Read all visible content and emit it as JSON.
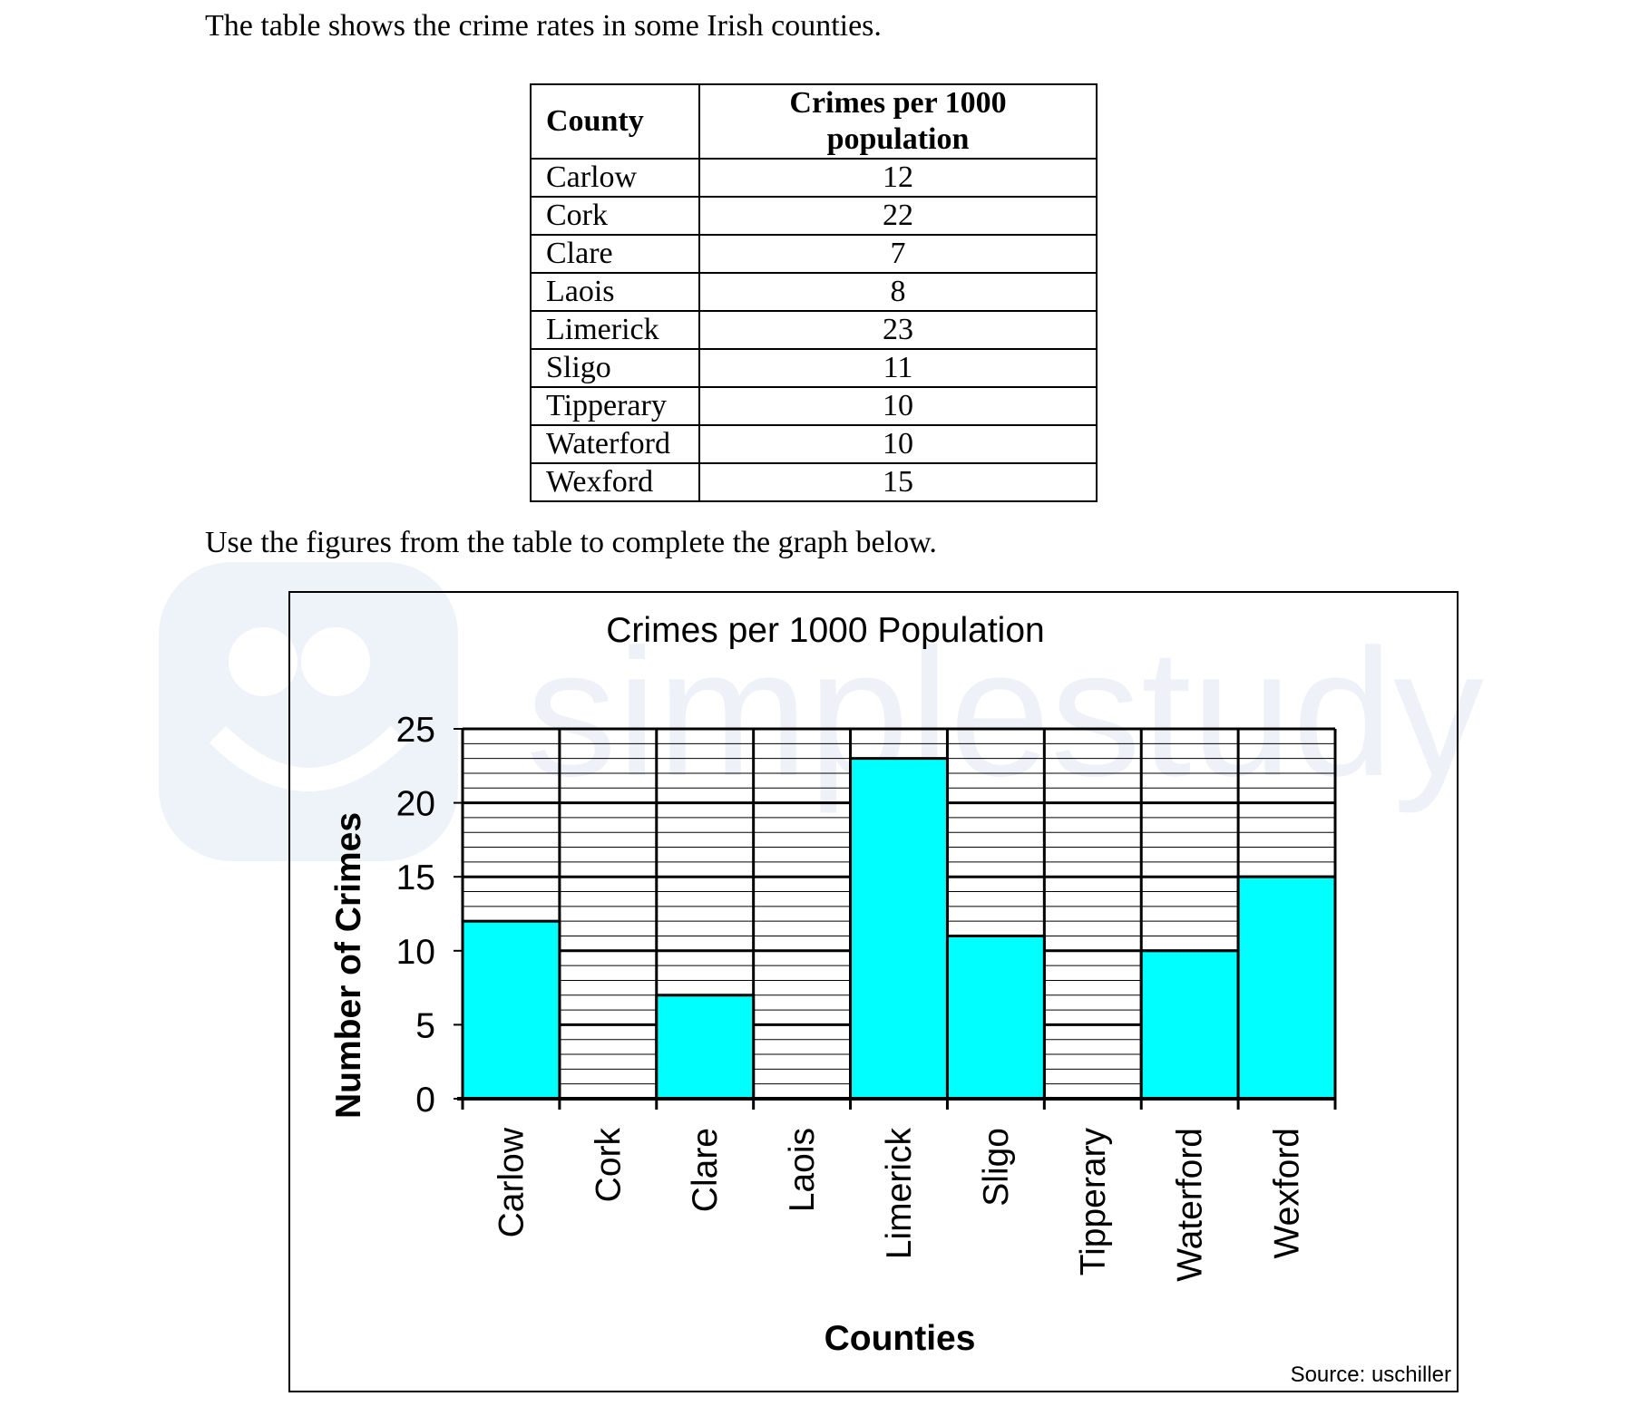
{
  "intro_text": "The table shows the crime rates in some Irish counties.",
  "table": {
    "headers": [
      "County",
      "Crimes per 1000 population"
    ],
    "rows": [
      {
        "county": "Carlow",
        "value": "12"
      },
      {
        "county": "Cork",
        "value": "22"
      },
      {
        "county": "Clare",
        "value": "7"
      },
      {
        "county": "Laois",
        "value": "8"
      },
      {
        "county": "Limerick",
        "value": "23"
      },
      {
        "county": "Sligo",
        "value": "11"
      },
      {
        "county": "Tipperary",
        "value": "10"
      },
      {
        "county": "Waterford",
        "value": "10"
      },
      {
        "county": "Wexford",
        "value": "15"
      }
    ]
  },
  "instruction_text": "Use the figures from the table to complete the graph below.",
  "watermark_text": "simplestudy",
  "source_text": "Source: uschiller",
  "chart_data": {
    "type": "bar",
    "title": "Crimes per 1000 Population",
    "xlabel": "Counties",
    "ylabel": "Number of Crimes",
    "categories": [
      "Carlow",
      "Cork",
      "Clare",
      "Laois",
      "Limerick",
      "Sligo",
      "Tipperary",
      "Waterford",
      "Wexford"
    ],
    "values": [
      12,
      null,
      7,
      null,
      23,
      11,
      null,
      10,
      15
    ],
    "ylim": [
      0,
      25
    ],
    "yticks": [
      0,
      5,
      10,
      15,
      20,
      25
    ],
    "minor_grid_step": 1,
    "grid": true,
    "bar_color": "#00FFFF"
  }
}
